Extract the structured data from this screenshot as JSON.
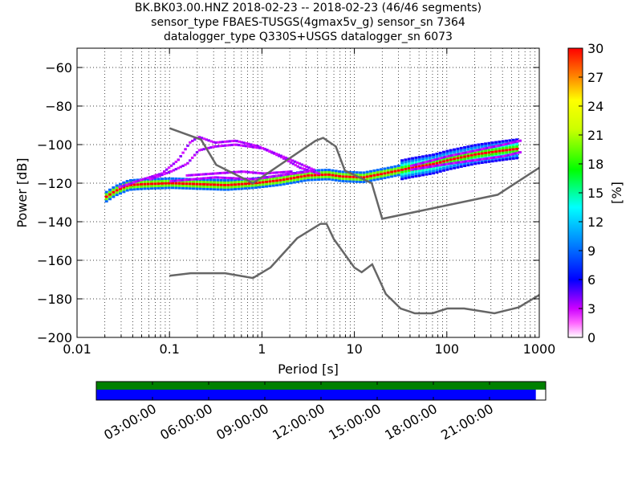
{
  "header": {
    "line1": "BK.BK03.00.HNZ   2018-02-23 -- 2018-02-23  (46/46 segments)",
    "line2": "sensor_type FBAES-TUSGS(4gmax5v_g) sensor_sn 7364",
    "line3": "datalogger_type Q330S+USGS datalogger_sn 6073"
  },
  "chart_data": [
    {
      "type": "heatmap",
      "subtype": "ppsd",
      "xlabel": "Period [s]",
      "ylabel": "Power [dB]",
      "xscale": "log",
      "xlim": [
        0.01,
        1000
      ],
      "ylim": [
        -200,
        -50
      ],
      "xticks": [
        {
          "v": 0.01,
          "label": "0.01"
        },
        {
          "v": 0.1,
          "label": "0.1"
        },
        {
          "v": 1,
          "label": "1"
        },
        {
          "v": 10,
          "label": "10"
        },
        {
          "v": 100,
          "label": "100"
        },
        {
          "v": 1000,
          "label": "1000"
        }
      ],
      "yticks": [
        {
          "v": -200,
          "label": "−200"
        },
        {
          "v": -180,
          "label": "−180"
        },
        {
          "v": -160,
          "label": "−160"
        },
        {
          "v": -140,
          "label": "−140"
        },
        {
          "v": -120,
          "label": "−120"
        },
        {
          "v": -100,
          "label": "−100"
        },
        {
          "v": -80,
          "label": "−80"
        },
        {
          "v": -60,
          "label": "−60"
        }
      ],
      "grid": "dotted",
      "colorbar": {
        "label": "[%]",
        "range": [
          0,
          30
        ],
        "ticks": [
          "0",
          "3",
          "6",
          "9",
          "12",
          "15",
          "18",
          "21",
          "24",
          "27",
          "30"
        ]
      },
      "noise_models": [
        {
          "id": "nhnm",
          "color": "#666666",
          "points": [
            [
              0.1,
              -91.5
            ],
            [
              0.22,
              -97.4
            ],
            [
              0.32,
              -110.5
            ],
            [
              0.8,
              -120
            ],
            [
              3.8,
              -98
            ],
            [
              4.6,
              -96.5
            ],
            [
              6.3,
              -101
            ],
            [
              7.9,
              -113.5
            ],
            [
              15.4,
              -120
            ],
            [
              20,
              -138.5
            ],
            [
              354.8,
              -126
            ],
            [
              1000,
              -112
            ]
          ]
        },
        {
          "id": "nlnm",
          "color": "#666666",
          "points": [
            [
              0.1,
              -168
            ],
            [
              0.17,
              -166.7
            ],
            [
              0.4,
              -166.7
            ],
            [
              0.8,
              -169.2
            ],
            [
              1.24,
              -163.7
            ],
            [
              2.4,
              -148.6
            ],
            [
              4.3,
              -141.1
            ],
            [
              5,
              -141.1
            ],
            [
              6,
              -149
            ],
            [
              10,
              -163.8
            ],
            [
              12,
              -166.2
            ],
            [
              15.6,
              -162.1
            ],
            [
              21.9,
              -177.5
            ],
            [
              31.6,
              -185
            ],
            [
              45,
              -187.5
            ],
            [
              70,
              -187.5
            ],
            [
              101,
              -185
            ],
            [
              154,
              -185
            ],
            [
              328,
              -187.5
            ],
            [
              600,
              -184.4
            ],
            [
              1000,
              -178
            ]
          ]
        }
      ],
      "dominant_curve": [
        [
          0.02,
          -127
        ],
        [
          0.025,
          -124
        ],
        [
          0.035,
          -121
        ],
        [
          0.05,
          -120.5
        ],
        [
          0.1,
          -120
        ],
        [
          0.2,
          -120.5
        ],
        [
          0.4,
          -121
        ],
        [
          0.8,
          -120
        ],
        [
          1.5,
          -118.5
        ],
        [
          3,
          -116
        ],
        [
          5,
          -115.5
        ],
        [
          7,
          -116.5
        ],
        [
          12,
          -117
        ],
        [
          20,
          -115
        ],
        [
          40,
          -112
        ],
        [
          70,
          -110
        ],
        [
          100,
          -108
        ],
        [
          200,
          -105
        ],
        [
          400,
          -103
        ],
        [
          600,
          -102
        ]
      ],
      "secondary_curves": [
        {
          "points": [
            [
              0.028,
              -122
            ],
            [
              0.05,
              -118
            ],
            [
              0.08,
              -115
            ],
            [
              0.12,
              -108
            ],
            [
              0.16,
              -99
            ],
            [
              0.2,
              -96
            ],
            [
              0.3,
              -99
            ],
            [
              0.5,
              -98
            ],
            [
              0.9,
              -101
            ],
            [
              1.5,
              -106
            ],
            [
              2.5,
              -112
            ],
            [
              4,
              -115
            ]
          ]
        },
        {
          "points": [
            [
              0.06,
              -118
            ],
            [
              0.1,
              -114
            ],
            [
              0.15,
              -110
            ],
            [
              0.2,
              -103
            ],
            [
              0.3,
              -101
            ],
            [
              0.5,
              -100
            ],
            [
              1,
              -102
            ],
            [
              2,
              -108
            ],
            [
              3.5,
              -113
            ]
          ]
        },
        {
          "points": [
            [
              0.15,
              -116
            ],
            [
              0.3,
              -115
            ],
            [
              0.6,
              -114
            ],
            [
              1,
              -115
            ],
            [
              2,
              -114
            ]
          ]
        },
        {
          "points": [
            [
              0.1,
              -119
            ],
            [
              0.3,
              -117
            ],
            [
              0.8,
              -118
            ],
            [
              1.5,
              -116
            ],
            [
              3,
              -114
            ]
          ]
        },
        {
          "points": [
            [
              40,
              -111
            ],
            [
              100,
              -106
            ],
            [
              200,
              -103
            ],
            [
              400,
              -100
            ],
            [
              600,
              -98
            ]
          ]
        },
        {
          "points": [
            [
              40,
              -113
            ],
            [
              100,
              -110
            ],
            [
              200,
              -108
            ],
            [
              400,
              -106
            ],
            [
              600,
              -104
            ]
          ]
        }
      ]
    },
    {
      "type": "timeline",
      "tick_labels": [
        "03:00:00",
        "06:00:00",
        "09:00:00",
        "12:00:00",
        "15:00:00",
        "18:00:00",
        "21:00:00"
      ],
      "tick_hours": [
        3,
        6,
        9,
        12,
        15,
        18,
        21
      ],
      "range_hours": [
        0,
        24
      ],
      "coverage_fraction": 0.978,
      "colors": {
        "top_bar": "#008000",
        "coverage_bar": "#0000ff"
      }
    }
  ]
}
